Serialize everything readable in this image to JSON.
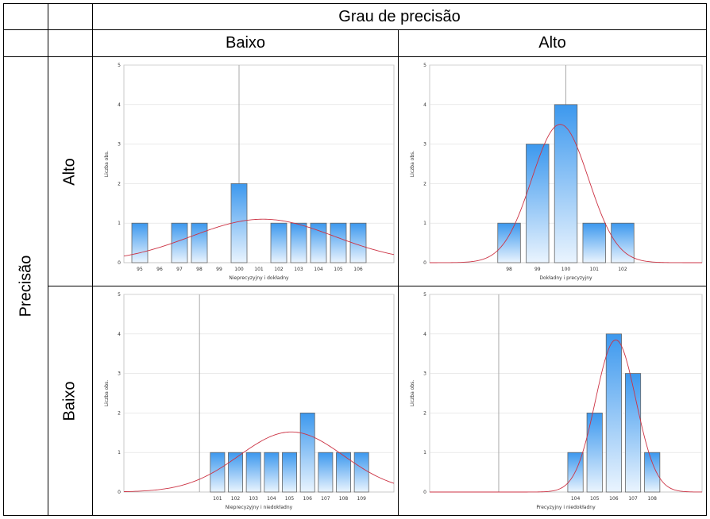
{
  "table": {
    "col_group_header": "Grau de precisão",
    "col_headers": [
      "Baixo",
      "Alto"
    ],
    "row_group_header": "Precisão",
    "row_headers": [
      "Alto",
      "Baixo"
    ]
  },
  "colors": {
    "bar_top": "#3c98ee",
    "bar_bottom": "#eaf4fe",
    "curve": "#cc3344",
    "grid": "#dddddd",
    "ref_line": "#aaaaaa"
  },
  "chart_data": [
    {
      "type": "bar",
      "xlabel": "Nieprecyzyjny i dokładny",
      "ylabel": "Liczba obs.",
      "ylim": [
        0,
        5
      ],
      "yticks": [
        "0",
        "1",
        "2",
        "3",
        "4",
        "5"
      ],
      "xlim": [
        94.2,
        107.8
      ],
      "reference_value": 100,
      "categories": [
        "95",
        "96",
        "97",
        "98",
        "99",
        "100",
        "101",
        "102",
        "103",
        "104",
        "105",
        "106"
      ],
      "values": [
        1,
        0,
        1,
        1,
        0,
        2,
        0,
        1,
        1,
        1,
        1,
        1
      ],
      "fit_curve": {
        "mean": 101.2,
        "sd": 3.6,
        "peak": 1.1
      }
    },
    {
      "type": "bar",
      "xlabel": "Dokładny i precyzyjny",
      "ylabel": "Liczba obs.",
      "ylim": [
        0,
        5
      ],
      "yticks": [
        "0",
        "1",
        "2",
        "3",
        "4",
        "5"
      ],
      "xlim": [
        95.2,
        104.8
      ],
      "reference_value": 100,
      "categories": [
        "98",
        "99",
        "100",
        "101",
        "102"
      ],
      "values": [
        1,
        3,
        4,
        1,
        1
      ],
      "fit_curve": {
        "mean": 99.8,
        "sd": 1.0,
        "peak": 3.5
      }
    },
    {
      "type": "bar",
      "xlabel": "Nieprecyzyjny i niedokładny",
      "ylabel": "Liczba obs.",
      "ylim": [
        0,
        5
      ],
      "yticks": [
        "0",
        "1",
        "2",
        "3",
        "4",
        "5"
      ],
      "xlim": [
        95.8,
        110.8
      ],
      "reference_value": 100,
      "categories": [
        "101",
        "102",
        "103",
        "104",
        "105",
        "106",
        "107",
        "108",
        "109"
      ],
      "values": [
        1,
        1,
        1,
        1,
        1,
        2,
        1,
        1,
        1
      ],
      "fit_curve": {
        "mean": 105.1,
        "sd": 2.9,
        "peak": 1.52
      }
    },
    {
      "type": "bar",
      "xlabel": "Precyzyjny i niedokładny",
      "ylabel": "Liczba obs.",
      "ylim": [
        0,
        5
      ],
      "yticks": [
        "0",
        "1",
        "2",
        "3",
        "4",
        "5"
      ],
      "xlim": [
        96.4,
        110.6
      ],
      "reference_value": 100,
      "categories": [
        "104",
        "105",
        "106",
        "107",
        "108"
      ],
      "values": [
        1,
        2,
        4,
        3,
        1
      ],
      "fit_curve": {
        "mean": 106.1,
        "sd": 1.05,
        "peak": 3.85
      }
    }
  ]
}
